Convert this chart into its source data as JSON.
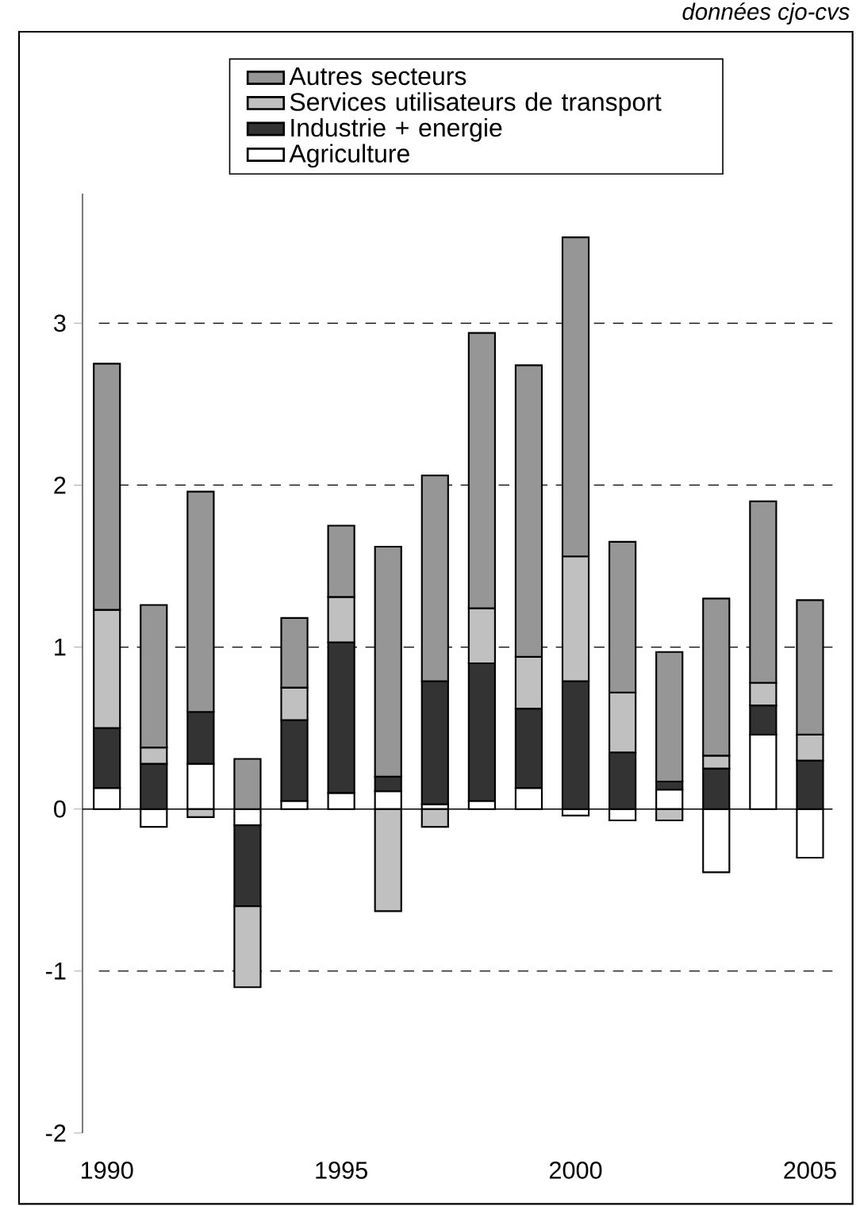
{
  "chart_data": {
    "type": "bar",
    "stacked": true,
    "annotations": [
      "données cjo-cvs"
    ],
    "categories": [
      "1990",
      null,
      null,
      null,
      null,
      "1995",
      null,
      null,
      null,
      null,
      "2000",
      null,
      null,
      null,
      null,
      "2005"
    ],
    "series": [
      {
        "name": "Agriculture",
        "color": "#ffffff",
        "values": [
          0.13,
          -0.11,
          0.28,
          -0.1,
          0.05,
          0.1,
          0.11,
          0.03,
          0.05,
          0.13,
          -0.04,
          -0.07,
          0.12,
          -0.39,
          0.46,
          -0.3
        ]
      },
      {
        "name": "Industrie + energie",
        "color": "#333333",
        "values": [
          0.37,
          0.28,
          0.32,
          -0.5,
          0.5,
          0.93,
          0.09,
          0.76,
          0.85,
          0.49,
          0.79,
          0.35,
          0.05,
          0.25,
          0.18,
          0.3
        ]
      },
      {
        "name": "Services utilisateurs de transport",
        "color": "#c0c0c0",
        "values": [
          0.73,
          0.1,
          -0.05,
          -0.5,
          0.2,
          0.28,
          -0.63,
          -0.11,
          0.34,
          0.32,
          0.77,
          0.37,
          -0.07,
          0.08,
          0.14,
          0.16
        ]
      },
      {
        "name": "Autres secteurs",
        "color": "#969696",
        "values": [
          1.52,
          0.88,
          1.36,
          0.31,
          0.43,
          0.44,
          1.42,
          1.27,
          1.7,
          1.8,
          1.97,
          0.93,
          0.8,
          0.97,
          1.12,
          0.83
        ]
      }
    ],
    "ylim": [
      -2,
      3.8
    ],
    "yticks": [
      -2,
      -1,
      0,
      1,
      2,
      3
    ],
    "grid": "y",
    "legend": "top"
  }
}
